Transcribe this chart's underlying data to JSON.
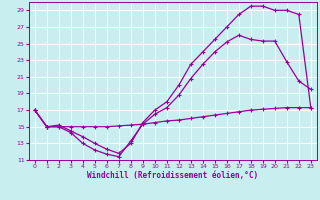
{
  "title": "",
  "xlabel": "Windchill (Refroidissement éolien,°C)",
  "ylabel": "",
  "bg_color": "#c8eef0",
  "grid_color": "#ffffff",
  "line_color": "#990099",
  "xlim": [
    -0.5,
    23.5
  ],
  "ylim": [
    11,
    30
  ],
  "xticks": [
    0,
    1,
    2,
    3,
    4,
    5,
    6,
    7,
    8,
    9,
    10,
    11,
    12,
    13,
    14,
    15,
    16,
    17,
    18,
    19,
    20,
    21,
    22,
    23
  ],
  "yticks": [
    11,
    13,
    15,
    17,
    19,
    21,
    23,
    25,
    27,
    29
  ],
  "line1_x": [
    0,
    1,
    2,
    3,
    4,
    5,
    6,
    7,
    8,
    9,
    10,
    11,
    12,
    13,
    14,
    15,
    16,
    17,
    18,
    19,
    20,
    21,
    22,
    23
  ],
  "line1_y": [
    17.0,
    15.0,
    15.2,
    14.5,
    13.8,
    13.0,
    12.3,
    11.8,
    13.0,
    15.5,
    17.0,
    18.0,
    20.0,
    22.5,
    24.0,
    25.5,
    27.0,
    28.5,
    29.5,
    29.5,
    29.0,
    29.0,
    28.5,
    17.3
  ],
  "line2_x": [
    0,
    1,
    2,
    3,
    4,
    5,
    6,
    7,
    8,
    9,
    10,
    11,
    12,
    13,
    14,
    15,
    16,
    17,
    18,
    19,
    20,
    21,
    22,
    23
  ],
  "line2_y": [
    17.0,
    15.0,
    15.0,
    14.3,
    13.0,
    12.2,
    11.7,
    11.4,
    13.3,
    15.3,
    16.5,
    17.3,
    18.8,
    20.8,
    22.5,
    24.0,
    25.2,
    26.0,
    25.5,
    25.3,
    25.3,
    22.8,
    20.5,
    19.5
  ],
  "line3_x": [
    0,
    1,
    2,
    3,
    4,
    5,
    6,
    7,
    8,
    9,
    10,
    11,
    12,
    13,
    14,
    15,
    16,
    17,
    18,
    19,
    20,
    21,
    22,
    23
  ],
  "line3_y": [
    17.0,
    15.0,
    15.0,
    15.0,
    15.0,
    15.0,
    15.0,
    15.1,
    15.2,
    15.3,
    15.5,
    15.7,
    15.8,
    16.0,
    16.2,
    16.4,
    16.6,
    16.8,
    17.0,
    17.1,
    17.2,
    17.3,
    17.3,
    17.3
  ]
}
